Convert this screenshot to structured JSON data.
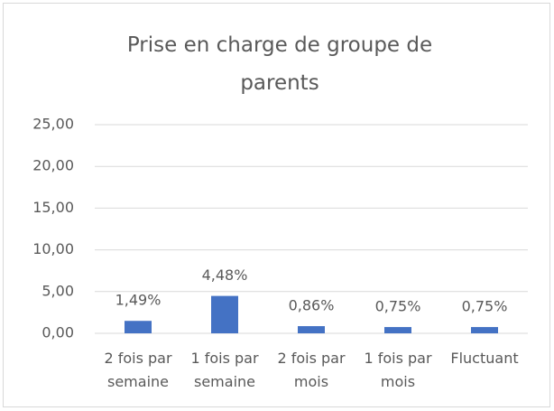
{
  "chart_data": {
    "type": "bar",
    "title": "Prise en charge de groupe de parents",
    "categories": [
      "2 fois par semaine",
      "1 fois par semaine",
      "2 fois par mois",
      "1 fois par mois",
      "Fluctuant"
    ],
    "values": [
      1.49,
      4.48,
      0.86,
      0.75,
      0.75
    ],
    "value_labels": [
      "1,49%",
      "4,48%",
      "0,86%",
      "0,75%",
      "0,75%"
    ],
    "color": "#4472c4",
    "ylim": [
      0,
      25
    ],
    "yticks": [
      {
        "value": 0,
        "label": "0,00"
      },
      {
        "value": 5,
        "label": "5,00"
      },
      {
        "value": 10,
        "label": "10,00"
      },
      {
        "value": 15,
        "label": "15,00"
      },
      {
        "value": 20,
        "label": "20,00"
      },
      {
        "value": 25,
        "label": "25,00"
      }
    ],
    "grid": true
  }
}
